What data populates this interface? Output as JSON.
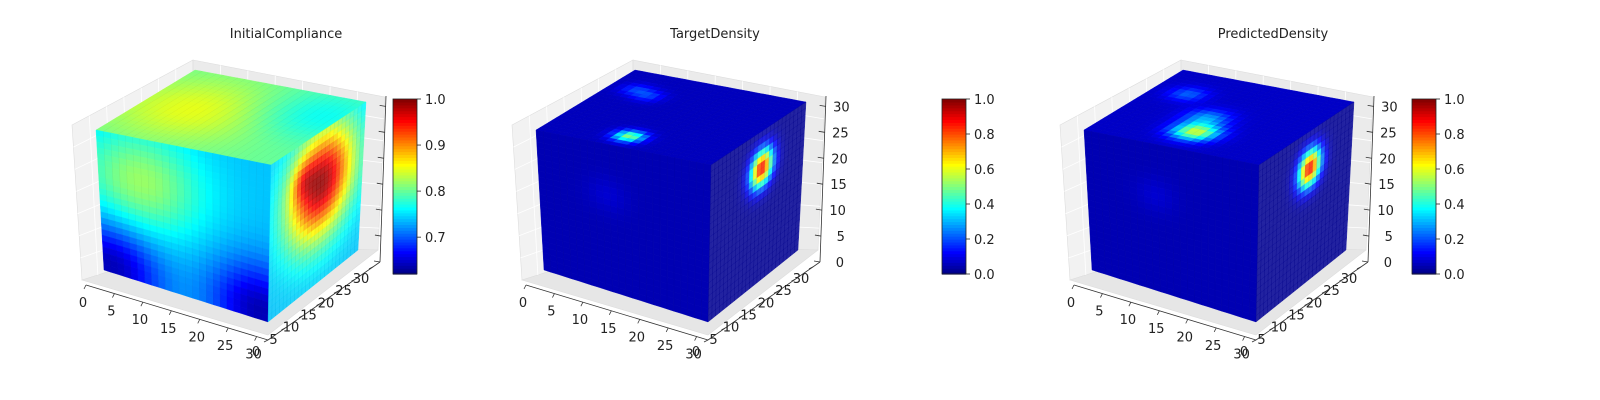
{
  "chart_data": [
    {
      "type": "heatmap",
      "subtype": "3d-voxel-cube",
      "title": "InitialCompliance",
      "x_ticks": [
        0,
        5,
        10,
        15,
        20,
        25,
        30
      ],
      "y_ticks": [
        0,
        5,
        10,
        15,
        20,
        25,
        30
      ],
      "z_ticks": [
        0,
        5,
        10,
        15,
        20,
        25,
        30
      ],
      "z_tick_labels_visible": false,
      "colorbar": {
        "min": 0.62,
        "max": 1.0,
        "ticks": [
          0.7,
          0.8,
          0.9,
          1.0
        ],
        "labels": [
          "0.7",
          "0.8",
          "0.9",
          "1.0"
        ]
      },
      "colormap": "jet",
      "face_values": {
        "front": {
          "base": 0.74,
          "hotspots": [
            [
              0.25,
              0.3,
              0.35,
              0.08
            ],
            [
              0.05,
              0.95,
              0.3,
              -0.1
            ],
            [
              0.95,
              0.95,
              0.3,
              -0.1
            ]
          ]
        },
        "right": {
          "base": 0.74,
          "hotspots": [
            [
              0.55,
              0.35,
              0.35,
              0.25
            ],
            [
              0.35,
              0.25,
              0.12,
              0.05
            ]
          ]
        },
        "top": {
          "base": 0.8,
          "hotspots": [
            [
              0.3,
              0.5,
              0.45,
              0.05
            ],
            [
              0.85,
              0.3,
              0.35,
              -0.04
            ]
          ]
        }
      }
    },
    {
      "type": "heatmap",
      "subtype": "3d-voxel-cube",
      "title": "TargetDensity",
      "x_ticks": [
        0,
        5,
        10,
        15,
        20,
        25,
        30
      ],
      "y_ticks": [
        0,
        5,
        10,
        15,
        20,
        25,
        30
      ],
      "z_ticks": [
        0,
        5,
        10,
        15,
        20,
        25,
        30
      ],
      "z_tick_labels_visible": true,
      "colorbar": {
        "min": 0.0,
        "max": 1.0,
        "ticks": [
          0.0,
          0.2,
          0.4,
          0.6,
          0.8,
          1.0
        ],
        "labels": [
          "0.0",
          "0.2",
          "0.4",
          "0.6",
          "0.8",
          "1.0"
        ]
      },
      "colormap": "jet",
      "face_values": {
        "front": {
          "base": 0.05,
          "hotspots": [
            [
              0.4,
              0.35,
              0.12,
              0.03
            ]
          ]
        },
        "right": {
          "base": 0.02,
          "hotspots": [
            [
              0.55,
              0.25,
              0.12,
              0.85
            ]
          ]
        },
        "top": {
          "base": 0.06,
          "hotspots": [
            [
              0.45,
              0.85,
              0.08,
              0.45
            ],
            [
              0.15,
              0.25,
              0.08,
              0.12
            ],
            [
              0.25,
              0.3,
              0.08,
              0.12
            ]
          ]
        }
      }
    },
    {
      "type": "heatmap",
      "subtype": "3d-voxel-cube",
      "title": "PredictedDensity",
      "x_ticks": [
        0,
        5,
        10,
        15,
        20,
        25,
        30
      ],
      "y_ticks": [
        0,
        5,
        10,
        15,
        20,
        25,
        30
      ],
      "z_ticks": [
        0,
        5,
        10,
        15,
        20,
        25,
        30
      ],
      "z_tick_labels_visible": true,
      "colorbar": {
        "min": 0.0,
        "max": 1.0,
        "ticks": [
          0.0,
          0.2,
          0.4,
          0.6,
          0.8,
          1.0
        ],
        "labels": [
          "0.0",
          "0.2",
          "0.4",
          "0.6",
          "0.8",
          "1.0"
        ]
      },
      "colormap": "jet",
      "face_values": {
        "front": {
          "base": 0.05,
          "hotspots": [
            [
              0.4,
              0.35,
              0.12,
              0.03
            ]
          ]
        },
        "right": {
          "base": 0.02,
          "hotspots": [
            [
              0.55,
              0.25,
              0.12,
              0.85
            ]
          ]
        },
        "top": {
          "base": 0.07,
          "hotspots": [
            [
              0.5,
              0.75,
              0.12,
              0.5
            ],
            [
              0.45,
              0.55,
              0.12,
              0.2
            ],
            [
              0.2,
              0.3,
              0.1,
              0.15
            ]
          ]
        }
      }
    }
  ]
}
